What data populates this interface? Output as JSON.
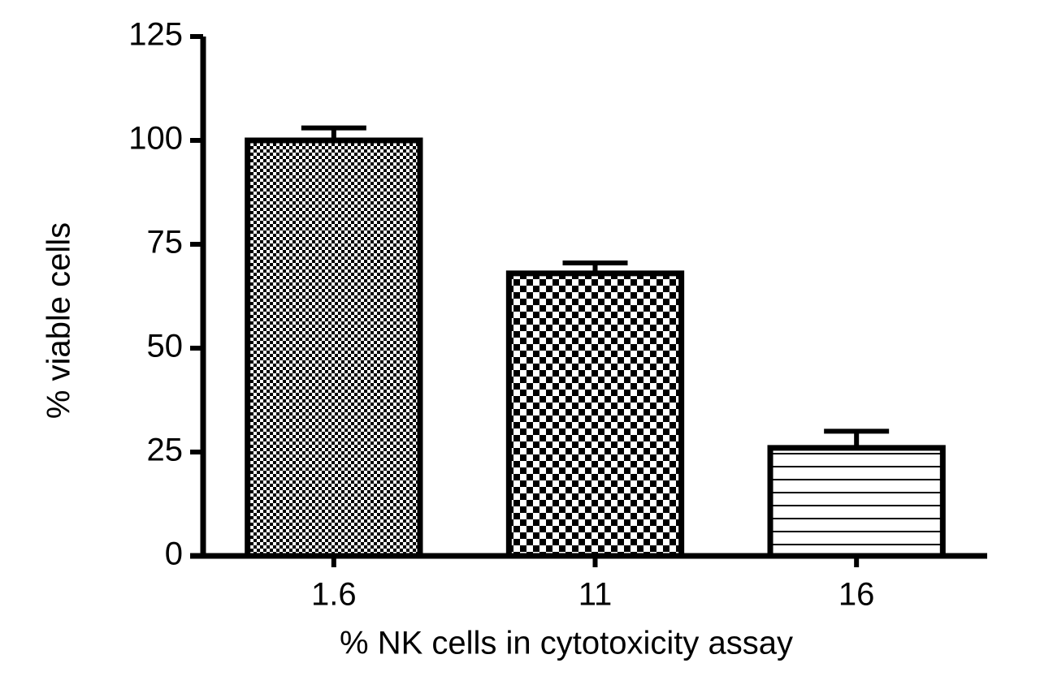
{
  "chart_data": {
    "type": "bar",
    "x_label": "% NK cells in cytotoxicity assay",
    "y_label": "% viable cells",
    "categories": [
      "1.6",
      "11",
      "16"
    ],
    "values": [
      100,
      68,
      26
    ],
    "errors": [
      3,
      2.5,
      4
    ],
    "patterns": [
      "fine-checker",
      "checker",
      "horizontal-lines"
    ],
    "color": "#000000",
    "ylim": [
      0,
      125
    ],
    "yticks": [
      0,
      25,
      50,
      75,
      100,
      125
    ],
    "grid": false
  }
}
